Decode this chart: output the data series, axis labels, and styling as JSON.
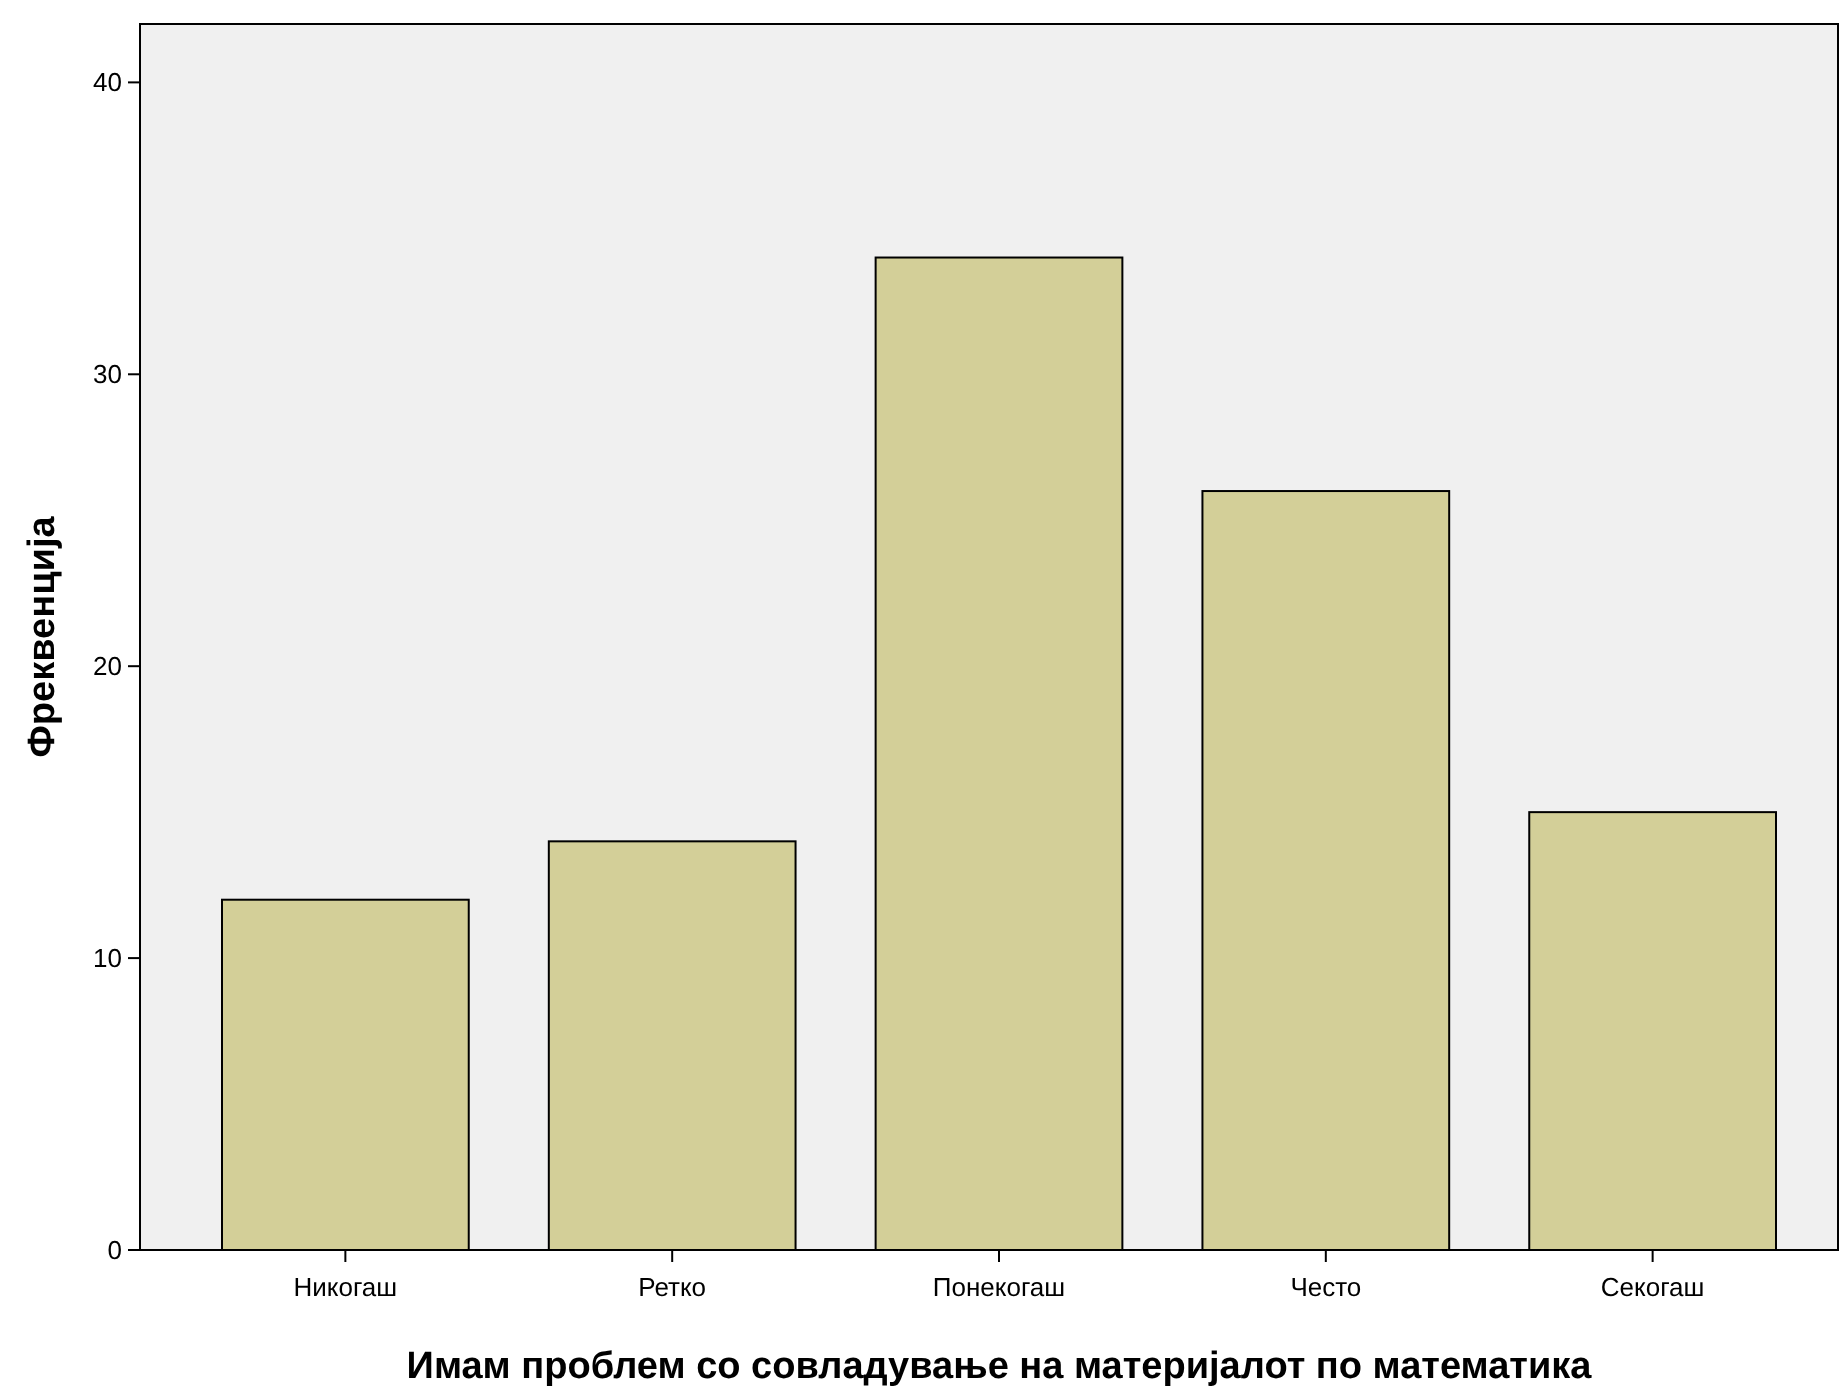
{
  "chart_data": {
    "type": "bar",
    "xlabel": "Имам проблем со совладување на материјалот по математика",
    "ylabel": "Фреквенција",
    "categories": [
      "Никогаш",
      "Ретко",
      "Понекогаш",
      "Често",
      "Секогаш"
    ],
    "values": [
      12,
      14,
      34,
      26,
      15
    ],
    "color": "#d3cf98",
    "ylim": [
      0,
      42
    ],
    "yticks": [
      0,
      10,
      20,
      30,
      40
    ],
    "grid": false
  }
}
